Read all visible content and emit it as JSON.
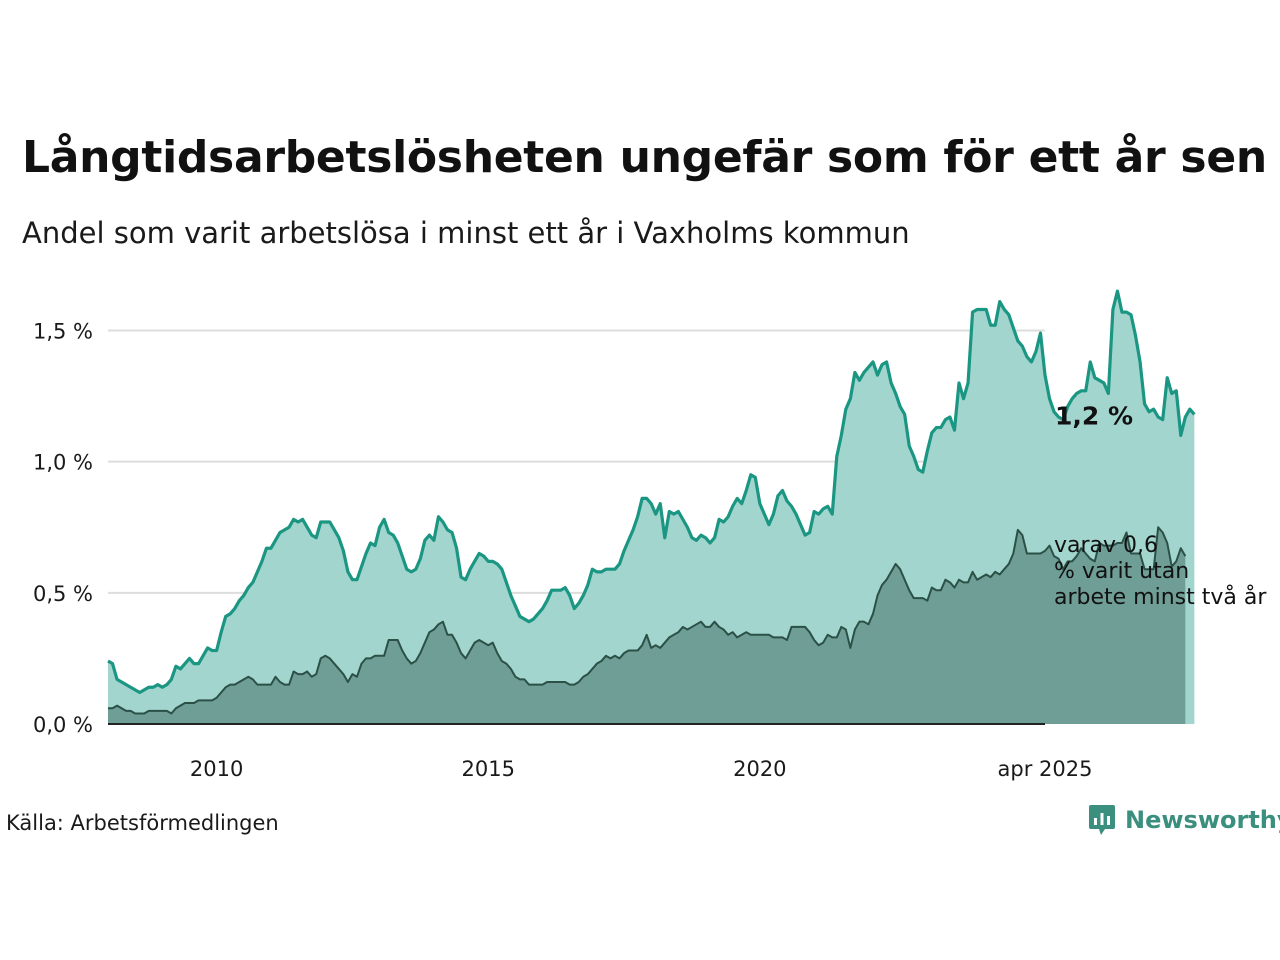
{
  "header": {
    "title": "Långtidsarbetslösheten ungefär som för ett år sen",
    "subtitle": "Andel som varit arbetslösa i minst ett år i Vaxholms kommun"
  },
  "footer": {
    "source": "Källa: Arbetsförmedlingen",
    "brand": "Newsworthy",
    "brand_icon": "newsworthy-logo-icon"
  },
  "colors": {
    "series1_line": "#1a9682",
    "series1_fill": "#a3d5cf",
    "series2_line": "#2b5147",
    "series2_fill": "#6f9e96",
    "grid": "#dddddd",
    "brand": "#3a8f7e"
  },
  "chart_data": {
    "type": "area",
    "x_start": "2008-01",
    "x_end": "2025-04",
    "ylim": [
      0,
      1.7
    ],
    "y_ticks": [
      0.0,
      0.5,
      1.0,
      1.5
    ],
    "y_tick_labels": [
      "0,0 %",
      "0,5 %",
      "1,0 %",
      "1,5 %"
    ],
    "x_ticks": [
      "2010-01",
      "2015-01",
      "2020-01",
      "2025-04"
    ],
    "x_tick_labels": [
      "2010",
      "2015",
      "2020",
      "apr 2025"
    ],
    "grid": "horizontal",
    "series": [
      {
        "label": "1,2 %",
        "values": [
          0.24,
          0.23,
          0.17,
          0.16,
          0.15,
          0.14,
          0.13,
          0.12,
          0.13,
          0.14,
          0.14,
          0.15,
          0.14,
          0.15,
          0.17,
          0.22,
          0.21,
          0.23,
          0.25,
          0.23,
          0.23,
          0.26,
          0.29,
          0.28,
          0.28,
          0.35,
          0.41,
          0.42,
          0.44,
          0.47,
          0.49,
          0.52,
          0.54,
          0.58,
          0.62,
          0.67,
          0.67,
          0.7,
          0.73,
          0.74,
          0.75,
          0.78,
          0.77,
          0.78,
          0.75,
          0.72,
          0.71,
          0.77,
          0.77,
          0.77,
          0.74,
          0.71,
          0.66,
          0.58,
          0.55,
          0.55,
          0.6,
          0.65,
          0.69,
          0.68,
          0.75,
          0.78,
          0.73,
          0.72,
          0.69,
          0.64,
          0.59,
          0.58,
          0.59,
          0.63,
          0.7,
          0.72,
          0.7,
          0.79,
          0.77,
          0.74,
          0.73,
          0.67,
          0.56,
          0.55,
          0.59,
          0.62,
          0.65,
          0.64,
          0.62,
          0.62,
          0.61,
          0.59,
          0.54,
          0.49,
          0.45,
          0.41,
          0.4,
          0.39,
          0.4,
          0.42,
          0.44,
          0.47,
          0.51,
          0.51,
          0.51,
          0.52,
          0.49,
          0.44,
          0.46,
          0.49,
          0.53,
          0.59,
          0.58,
          0.58,
          0.59,
          0.59,
          0.59,
          0.61,
          0.66,
          0.7,
          0.74,
          0.79,
          0.86,
          0.86,
          0.84,
          0.8,
          0.84,
          0.71,
          0.81,
          0.8,
          0.81,
          0.78,
          0.75,
          0.71,
          0.7,
          0.72,
          0.71,
          0.69,
          0.71,
          0.78,
          0.77,
          0.79,
          0.83,
          0.86,
          0.84,
          0.89,
          0.95,
          0.94,
          0.84,
          0.8,
          0.76,
          0.8,
          0.87,
          0.89,
          0.85,
          0.83,
          0.8,
          0.76,
          0.72,
          0.73,
          0.81,
          0.8,
          0.82,
          0.83,
          0.8,
          1.02,
          1.1,
          1.2,
          1.24,
          1.34,
          1.31,
          1.34,
          1.36,
          1.38,
          1.33,
          1.37,
          1.38,
          1.3,
          1.26,
          1.21,
          1.18,
          1.06,
          1.02,
          0.97,
          0.96,
          1.04,
          1.11,
          1.13,
          1.13,
          1.16,
          1.17,
          1.12,
          1.3,
          1.24,
          1.3,
          1.57,
          1.58,
          1.58,
          1.58,
          1.52,
          1.52,
          1.61,
          1.58,
          1.56,
          1.51,
          1.46,
          1.44,
          1.4,
          1.38,
          1.42,
          1.49,
          1.33,
          1.24,
          1.19,
          1.17,
          1.16,
          1.21,
          1.24,
          1.26,
          1.27,
          1.27,
          1.38,
          1.32,
          1.31,
          1.3,
          1.26,
          1.58,
          1.65,
          1.57,
          1.57,
          1.56,
          1.48,
          1.38,
          1.22,
          1.19,
          1.2,
          1.17,
          1.16,
          1.32,
          1.26,
          1.27,
          1.1,
          1.17,
          1.2,
          1.18
        ]
      },
      {
        "label": "varav 0,6 % varit utan arbete minst två år",
        "values": [
          0.06,
          0.06,
          0.07,
          0.06,
          0.05,
          0.05,
          0.04,
          0.04,
          0.04,
          0.05,
          0.05,
          0.05,
          0.05,
          0.05,
          0.04,
          0.06,
          0.07,
          0.08,
          0.08,
          0.08,
          0.09,
          0.09,
          0.09,
          0.09,
          0.1,
          0.12,
          0.14,
          0.15,
          0.15,
          0.16,
          0.17,
          0.18,
          0.17,
          0.15,
          0.15,
          0.15,
          0.15,
          0.18,
          0.16,
          0.15,
          0.15,
          0.2,
          0.19,
          0.19,
          0.2,
          0.18,
          0.19,
          0.25,
          0.26,
          0.25,
          0.23,
          0.21,
          0.19,
          0.16,
          0.19,
          0.18,
          0.23,
          0.25,
          0.25,
          0.26,
          0.26,
          0.26,
          0.32,
          0.32,
          0.32,
          0.28,
          0.25,
          0.23,
          0.24,
          0.27,
          0.31,
          0.35,
          0.36,
          0.38,
          0.39,
          0.34,
          0.34,
          0.31,
          0.27,
          0.25,
          0.28,
          0.31,
          0.32,
          0.31,
          0.3,
          0.31,
          0.27,
          0.24,
          0.23,
          0.21,
          0.18,
          0.17,
          0.17,
          0.15,
          0.15,
          0.15,
          0.15,
          0.16,
          0.16,
          0.16,
          0.16,
          0.16,
          0.15,
          0.15,
          0.16,
          0.18,
          0.19,
          0.21,
          0.23,
          0.24,
          0.26,
          0.25,
          0.26,
          0.25,
          0.27,
          0.28,
          0.28,
          0.28,
          0.3,
          0.34,
          0.29,
          0.3,
          0.29,
          0.31,
          0.33,
          0.34,
          0.35,
          0.37,
          0.36,
          0.37,
          0.38,
          0.39,
          0.37,
          0.37,
          0.39,
          0.37,
          0.36,
          0.34,
          0.35,
          0.33,
          0.34,
          0.35,
          0.34,
          0.34,
          0.34,
          0.34,
          0.34,
          0.33,
          0.33,
          0.33,
          0.32,
          0.37,
          0.37,
          0.37,
          0.37,
          0.35,
          0.32,
          0.3,
          0.31,
          0.34,
          0.33,
          0.33,
          0.37,
          0.36,
          0.29,
          0.36,
          0.39,
          0.39,
          0.38,
          0.42,
          0.49,
          0.53,
          0.55,
          0.58,
          0.61,
          0.59,
          0.55,
          0.51,
          0.48,
          0.48,
          0.48,
          0.47,
          0.52,
          0.51,
          0.51,
          0.55,
          0.54,
          0.52,
          0.55,
          0.54,
          0.54,
          0.58,
          0.55,
          0.56,
          0.57,
          0.56,
          0.58,
          0.57,
          0.59,
          0.61,
          0.65,
          0.74,
          0.72,
          0.65,
          0.65,
          0.65,
          0.65,
          0.66,
          0.68,
          0.64,
          0.63,
          0.59,
          0.62,
          0.62,
          0.64,
          0.67,
          0.65,
          0.63,
          0.62,
          0.69,
          0.68,
          0.68,
          0.68,
          0.69,
          0.69,
          0.73,
          0.65,
          0.65,
          0.65,
          0.59,
          0.59,
          0.59,
          0.75,
          0.73,
          0.69,
          0.6,
          0.62,
          0.67,
          0.64
        ]
      }
    ]
  }
}
